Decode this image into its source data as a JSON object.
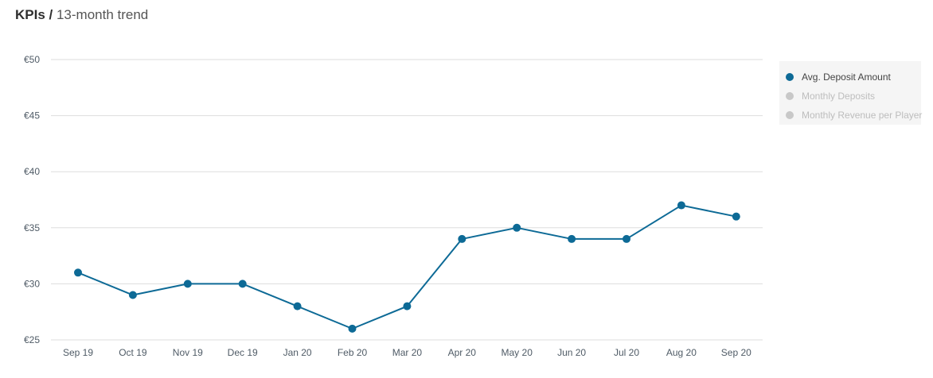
{
  "header": {
    "title": "KPIs",
    "separator": " / ",
    "subtitle": "13-month trend"
  },
  "colors": {
    "series_active": "#0d6a96",
    "series_inactive": "#c8c8c8",
    "legend_text_active": "#444444",
    "legend_text_inactive": "#bdbdbd",
    "grid": "#dddddd"
  },
  "legend": {
    "items": [
      {
        "label": "Avg. Deposit Amount",
        "active": true
      },
      {
        "label": "Monthly Deposits",
        "active": false
      },
      {
        "label": "Monthly Revenue per Player",
        "active": false
      }
    ]
  },
  "chart_data": {
    "type": "line",
    "categories": [
      "Sep 19",
      "Oct 19",
      "Nov 19",
      "Dec 19",
      "Jan 20",
      "Feb 20",
      "Mar 20",
      "Apr 20",
      "May 20",
      "Jun 20",
      "Jul 20",
      "Aug 20",
      "Sep 20"
    ],
    "series": [
      {
        "name": "Avg. Deposit Amount",
        "values": [
          31,
          29,
          30,
          30,
          28,
          26,
          28,
          34,
          35,
          34,
          34,
          37,
          36
        ]
      }
    ],
    "yticks": [
      25,
      30,
      35,
      40,
      45,
      50
    ],
    "ytick_labels": [
      "€25",
      "€30",
      "€35",
      "€40",
      "€45",
      "€50"
    ],
    "ylim": [
      25,
      50
    ],
    "grid": true,
    "legend_position": "right"
  }
}
